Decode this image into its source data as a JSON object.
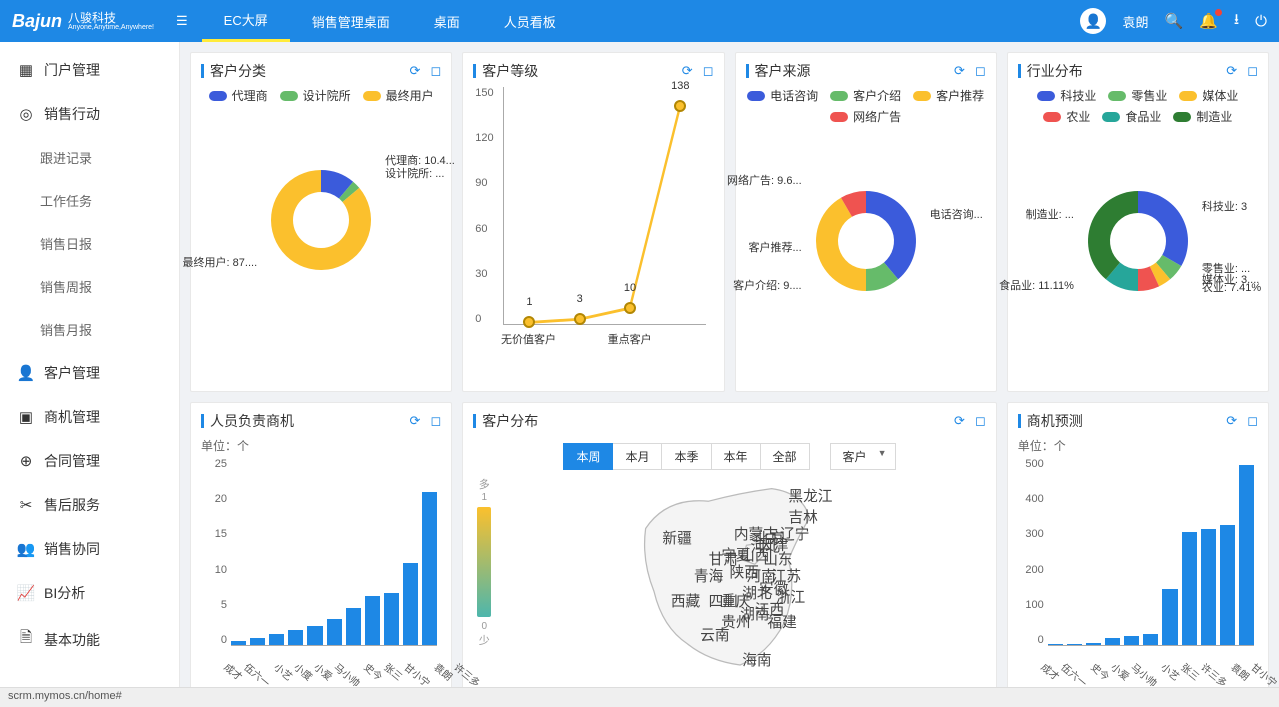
{
  "brand": {
    "en": "Bajun",
    "cn": "八骏科技",
    "tagline": "Anyone,Anytime,Anywhere!"
  },
  "topnav": {
    "items": [
      {
        "label": "EC大屏",
        "active": true
      },
      {
        "label": "销售管理桌面",
        "active": false
      },
      {
        "label": "桌面",
        "active": false
      },
      {
        "label": "人员看板",
        "active": false
      }
    ]
  },
  "user": {
    "name": "袁朗"
  },
  "sidebar": {
    "items": [
      {
        "icon": "grid",
        "label": "门户管理"
      },
      {
        "icon": "target",
        "label": "销售行动",
        "expanded": true,
        "children": [
          {
            "label": "跟进记录"
          },
          {
            "label": "工作任务"
          },
          {
            "label": "销售日报"
          },
          {
            "label": "销售周报"
          },
          {
            "label": "销售月报"
          }
        ]
      },
      {
        "icon": "person",
        "label": "客户管理"
      },
      {
        "icon": "opportunity",
        "label": "商机管理"
      },
      {
        "icon": "contract",
        "label": "合同管理"
      },
      {
        "icon": "service",
        "label": "售后服务"
      },
      {
        "icon": "collab",
        "label": "销售协同"
      },
      {
        "icon": "chart",
        "label": "BI分析"
      },
      {
        "icon": "doc",
        "label": "基本功能"
      }
    ]
  },
  "cards": {
    "cust_category": {
      "title": "客户分类",
      "type": "donut",
      "colors": {
        "agent": "#3b5bdb",
        "design": "#66bb6a",
        "end_user": "#fbc02d"
      },
      "legend": [
        {
          "label": "代理商",
          "key": "agent"
        },
        {
          "label": "设计院所",
          "key": "design"
        },
        {
          "label": "最终用户",
          "key": "end_user"
        }
      ],
      "slices": [
        {
          "label": "代理商: 10.4...",
          "angle_start": -90,
          "angle_sweep": 40,
          "color": "#3b5bdb"
        },
        {
          "label": "设计院所: ...",
          "angle_start": -50,
          "angle_sweep": 10,
          "color": "#66bb6a"
        },
        {
          "label": "最终用户: 87....",
          "angle_start": -40,
          "angle_sweep": 310,
          "color": "#fbc02d"
        }
      ]
    },
    "cust_level": {
      "title": "客户等级",
      "type": "line",
      "yticks": [
        0,
        30,
        60,
        90,
        120,
        150
      ],
      "ylim": [
        0,
        150
      ],
      "points": [
        {
          "xlabel": "无价值客户",
          "value": 1
        },
        {
          "xlabel": "",
          "value": 3
        },
        {
          "xlabel": "重点客户",
          "value": 10
        },
        {
          "xlabel": "",
          "value": 138
        }
      ],
      "line_color": "#fbc02d",
      "marker_border": "#b28704"
    },
    "cust_source": {
      "title": "客户来源",
      "type": "donut",
      "legend": [
        {
          "label": "电话咨询",
          "color": "#3b5bdb"
        },
        {
          "label": "客户介绍",
          "color": "#66bb6a"
        },
        {
          "label": "客户推荐",
          "color": "#fbc02d"
        },
        {
          "label": "网络广告",
          "color": "#ef5350"
        }
      ],
      "slices": [
        {
          "label": "电话咨询...",
          "angle_start": -90,
          "angle_sweep": 140,
          "color": "#3b5bdb",
          "lbl_side": "right"
        },
        {
          "label": "客户介绍: 9....",
          "angle_start": 50,
          "angle_sweep": 40,
          "color": "#66bb6a",
          "lbl_side": "left"
        },
        {
          "label": "客户推荐...",
          "angle_start": 90,
          "angle_sweep": 150,
          "color": "#fbc02d",
          "lbl_side": "left"
        },
        {
          "label": "网络广告: 9.6...",
          "angle_start": 240,
          "angle_sweep": 30,
          "color": "#ef5350",
          "lbl_side": "left"
        }
      ]
    },
    "industry": {
      "title": "行业分布",
      "type": "donut",
      "legend": [
        {
          "label": "科技业",
          "color": "#3b5bdb"
        },
        {
          "label": "零售业",
          "color": "#66bb6a"
        },
        {
          "label": "媒体业",
          "color": "#fbc02d"
        },
        {
          "label": "农业",
          "color": "#ef5350"
        },
        {
          "label": "食品业",
          "color": "#26a69a"
        },
        {
          "label": "制造业",
          "color": "#2e7d32"
        }
      ],
      "slices": [
        {
          "label": "科技业: 3",
          "angle_start": -90,
          "angle_sweep": 120,
          "color": "#3b5bdb",
          "lbl_side": "right"
        },
        {
          "label": "零售业: ...",
          "angle_start": 30,
          "angle_sweep": 20,
          "color": "#66bb6a",
          "lbl_side": "right"
        },
        {
          "label": "媒体业: 3....",
          "angle_start": 50,
          "angle_sweep": 15,
          "color": "#fbc02d",
          "lbl_side": "right"
        },
        {
          "label": "农业: 7.41%",
          "angle_start": 65,
          "angle_sweep": 25,
          "color": "#ef5350",
          "lbl_side": "right"
        },
        {
          "label": "食品业: 11.11%",
          "angle_start": 90,
          "angle_sweep": 40,
          "color": "#26a69a",
          "lbl_side": "left"
        },
        {
          "label": "制造业: ...",
          "angle_start": 130,
          "angle_sweep": 140,
          "color": "#2e7d32",
          "lbl_side": "left"
        }
      ]
    },
    "staff_opp": {
      "title": "人员负责商机",
      "type": "bar",
      "unit": "单位：个",
      "yticks": [
        0,
        5,
        10,
        15,
        20,
        25
      ],
      "ymax": 25,
      "bar_color": "#1e88e5",
      "bars": [
        {
          "label": "成才",
          "value": 0.5
        },
        {
          "label": "伍六一",
          "value": 1
        },
        {
          "label": "小艺",
          "value": 1.5
        },
        {
          "label": "小度",
          "value": 2
        },
        {
          "label": "小爱",
          "value": 2.5
        },
        {
          "label": "马小帅",
          "value": 3.5
        },
        {
          "label": "史今",
          "value": 5
        },
        {
          "label": "张三",
          "value": 6.5
        },
        {
          "label": "甘小宁",
          "value": 7
        },
        {
          "label": "袁朗",
          "value": 11
        },
        {
          "label": "许三多",
          "value": 20.5
        }
      ]
    },
    "cust_dist": {
      "title": "客户分布",
      "type": "map",
      "range_buttons": [
        {
          "label": "本周",
          "active": true
        },
        {
          "label": "本月",
          "active": false
        },
        {
          "label": "本季",
          "active": false
        },
        {
          "label": "本年",
          "active": false
        },
        {
          "label": "全部",
          "active": false
        }
      ],
      "selector": "客户",
      "legend": {
        "high": "多",
        "low": "少",
        "max": 1,
        "min": 0
      },
      "provinces": [
        "新疆",
        "西藏",
        "青海",
        "甘肃",
        "内蒙古",
        "黑龙江",
        "吉林",
        "辽宁",
        "宁夏",
        "陕西",
        "山西",
        "河北",
        "北京",
        "天津",
        "山东",
        "河南",
        "四川",
        "重庆",
        "湖北",
        "安徽",
        "江苏",
        "贵州",
        "湖南",
        "江西",
        "浙江",
        "福建",
        "云南",
        "海南"
      ]
    },
    "opp_forecast": {
      "title": "商机预测",
      "type": "bar",
      "unit": "单位：个",
      "yticks": [
        0,
        100,
        200,
        300,
        400,
        500
      ],
      "ymax": 530,
      "bar_color": "#1e88e5",
      "bars": [
        {
          "label": "成才",
          "value": 2
        },
        {
          "label": "伍六一",
          "value": 4
        },
        {
          "label": "史今",
          "value": 6
        },
        {
          "label": "小爱",
          "value": 20
        },
        {
          "label": "马小帅",
          "value": 25
        },
        {
          "label": "小艺",
          "value": 30
        },
        {
          "label": "张三",
          "value": 160
        },
        {
          "label": "许三多",
          "value": 320
        },
        {
          "label": "袁朗",
          "value": 330
        },
        {
          "label": "甘小宁",
          "value": 340
        },
        {
          "label": "小度",
          "value": 510
        }
      ]
    }
  },
  "statusbar": "scrm.mymos.cn/home#"
}
